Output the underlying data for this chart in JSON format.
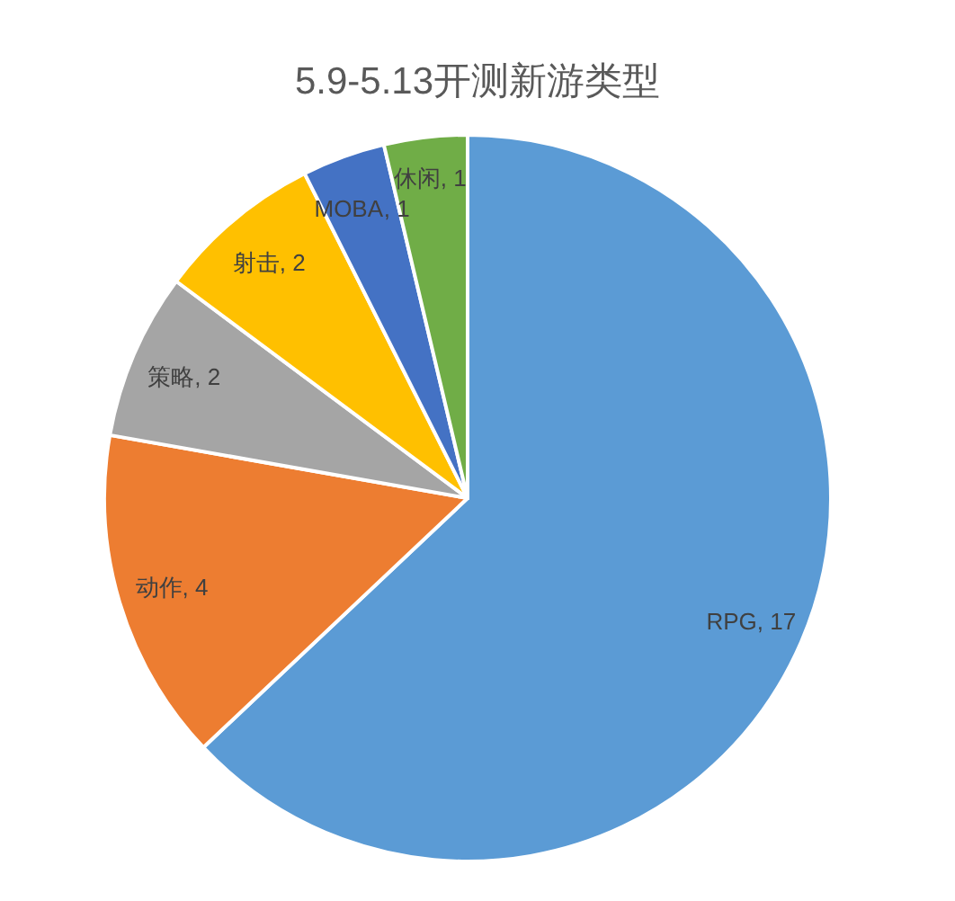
{
  "chart_data": {
    "type": "pie",
    "title": "5.9-5.13开测新游类型",
    "categories": [
      "RPG",
      "动作",
      "策略",
      "射击",
      "MOBA",
      "休闲"
    ],
    "values": [
      17,
      4,
      2,
      2,
      1,
      1
    ],
    "value_labels": [
      ", 17",
      ", 4",
      ", 2",
      ", 2",
      ", 1",
      ", 1"
    ],
    "colors": [
      "#5b9bd5",
      "#ed7d31",
      "#a5a5a5",
      "#ffc000",
      "#4472c4",
      "#70ad47"
    ]
  }
}
